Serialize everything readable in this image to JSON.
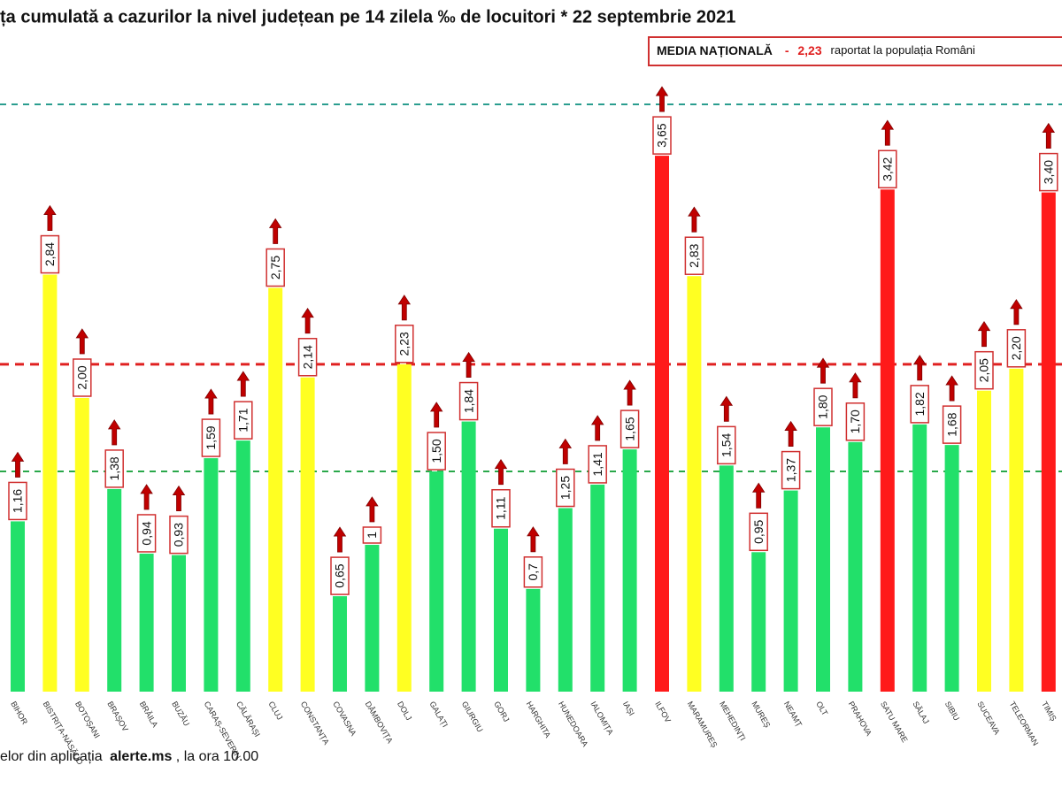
{
  "chart_data": {
    "type": "bar",
    "title": "ța cumulată a cazurilor la nivel județean pe 14 zilela ‰ de locuitori * 22 septembrie 2021",
    "categories": [
      "BIHOR",
      "BISTRIȚA-NĂSĂUD",
      "BOTOȘANI",
      "BRAȘOV",
      "BRĂILA",
      "BUZĂU",
      "CARAȘ-SEVERIN",
      "CĂLĂRAȘI",
      "CLUJ",
      "CONSTANȚA",
      "COVASNA",
      "DÂMBOVIȚA",
      "DOLJ",
      "GALAȚI",
      "GIURGIU",
      "GORJ",
      "HARGHITA",
      "HUNEDOARA",
      "IALOMIȚA",
      "IAȘI",
      "ILFOV",
      "MARAMUREȘ",
      "MEHEDINȚI",
      "MUREȘ",
      "NEAMȚ",
      "OLT",
      "PRAHOVA",
      "SATU MARE",
      "SĂLAJ",
      "SIBIU",
      "SUCEAVA",
      "TELEORMAN",
      "TIMIȘ"
    ],
    "values": [
      1.16,
      2.84,
      2.0,
      1.38,
      0.94,
      0.93,
      1.59,
      1.71,
      2.75,
      2.14,
      0.65,
      1,
      2.23,
      1.5,
      1.84,
      1.11,
      0.7,
      1.25,
      1.41,
      1.65,
      3.65,
      2.83,
      1.54,
      0.95,
      1.37,
      1.8,
      1.7,
      3.42,
      1.82,
      1.68,
      2.05,
      2.2,
      3.4
    ],
    "value_labels": [
      "1,16",
      "2,84",
      "2,00",
      "1,38",
      "0,94",
      "0,93",
      "1,59",
      "1,71",
      "2,75",
      "2,14",
      "0,65",
      "1",
      "2,23",
      "1,50",
      "1,84",
      "1,11",
      "0,7",
      "1,25",
      "1,41",
      "1,65",
      "3,65",
      "2,83",
      "1,54",
      "0,95",
      "1,37",
      "1,80",
      "1,70",
      "3,42",
      "1,82",
      "1,68",
      "2,05",
      "2,20",
      "3,40"
    ],
    "colors": [
      "#22e06a",
      "#ffff22",
      "#ffff22",
      "#22e06a",
      "#22e06a",
      "#22e06a",
      "#22e06a",
      "#22e06a",
      "#ffff22",
      "#ffff22",
      "#22e06a",
      "#22e06a",
      "#ffff22",
      "#22e06a",
      "#22e06a",
      "#22e06a",
      "#22e06a",
      "#22e06a",
      "#22e06a",
      "#22e06a",
      "#ff1a1a",
      "#ffff22",
      "#22e06a",
      "#22e06a",
      "#22e06a",
      "#22e06a",
      "#22e06a",
      "#ff1a1a",
      "#22e06a",
      "#22e06a",
      "#ffff22",
      "#ffff22",
      "#ff1a1a"
    ],
    "ylim": [
      0,
      4
    ],
    "reference_lines": [
      {
        "value": 4,
        "color": "#2a9d8f"
      },
      {
        "value": 2.23,
        "color": "#e02020"
      },
      {
        "value": 1.5,
        "color": "#2aa84a"
      }
    ],
    "national_average": {
      "name": "MEDIA NAȚIONALĂ",
      "separator": "-",
      "value": 2.23,
      "label": "2,23",
      "note": "raportat la populația Români"
    },
    "footer": {
      "prefix": "elor din aplicația",
      "source": "alerte.ms",
      "suffix": ", la ora 10.00"
    }
  }
}
